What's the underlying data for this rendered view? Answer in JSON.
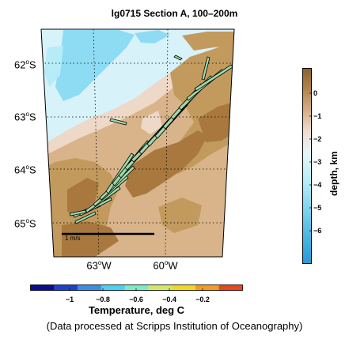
{
  "title": "lg0715 Section A, 100–200m",
  "map": {
    "lat_labels": [
      {
        "deg": "62",
        "hemi": "S"
      },
      {
        "deg": "63",
        "hemi": "S"
      },
      {
        "deg": "64",
        "hemi": "S"
      },
      {
        "deg": "65",
        "hemi": "S"
      }
    ],
    "lon_labels": [
      {
        "deg": "63",
        "hemi": "W"
      },
      {
        "deg": "60",
        "hemi": "W"
      }
    ],
    "degree_symbol": "o",
    "scale_bar_label": "1 m/s",
    "colors": {
      "land_dark": "#a8783e",
      "land_mid": "#c29a5e",
      "shelf_light": "#d9b48a",
      "shelf_pale": "#eed8c8",
      "water_pale": "#d8f2fa",
      "water_light": "#b6ecf8",
      "water_mid": "#8edcf4"
    }
  },
  "depth_colorbar": {
    "label": "depth, km",
    "ticks": [
      "0",
      "−1",
      "−2",
      "−3",
      "−4",
      "−5",
      "−6"
    ]
  },
  "temperature_colorbar": {
    "title": "Temperature, deg C",
    "ticks": [
      "−1",
      "−0.8",
      "−0.6",
      "−0.4",
      "−0.2"
    ],
    "colors": [
      "#0b0d8c",
      "#1f3fd0",
      "#3a8ee8",
      "#47d2f0",
      "#7fe8c8",
      "#cfe86a",
      "#f0d820",
      "#f39a20",
      "#e8481c"
    ]
  },
  "footer": "(Data processed at Scripps Institution of Oceanography)"
}
